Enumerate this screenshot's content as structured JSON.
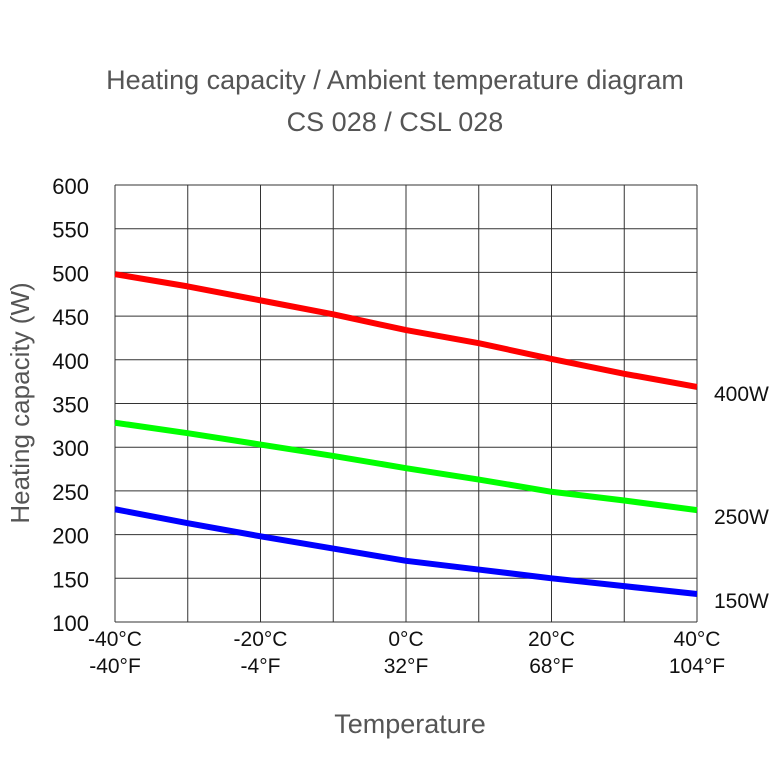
{
  "chart_data": {
    "type": "line",
    "title": "Heating capacity / Ambient temperature diagram",
    "subtitle": "CS 028 / CSL 028",
    "xlabel": "Temperature",
    "ylabel": "Heating capacity (W)",
    "x": [
      -40,
      -30,
      -20,
      -10,
      0,
      10,
      20,
      30,
      40
    ],
    "xlim": [
      -40,
      40
    ],
    "ylim": [
      100,
      600
    ],
    "yticks": [
      100,
      150,
      200,
      250,
      300,
      350,
      400,
      450,
      500,
      550,
      600
    ],
    "xticks": [
      {
        "value": -40,
        "c": "-40°C",
        "f": "-40°F"
      },
      {
        "value": -20,
        "c": "-20°C",
        "f": "-4°F"
      },
      {
        "value": 0,
        "c": "0°C",
        "f": "32°F"
      },
      {
        "value": 20,
        "c": "20°C",
        "f": "68°F"
      },
      {
        "value": 40,
        "c": "40°C",
        "f": "104°F"
      }
    ],
    "grid": true,
    "series": [
      {
        "name": "400W",
        "color": "#ff0000",
        "values": [
          498,
          484,
          468,
          452,
          434,
          419,
          401,
          384,
          369
        ]
      },
      {
        "name": "250W",
        "color": "#00ff00",
        "values": [
          328,
          316,
          303,
          290,
          276,
          263,
          249,
          239,
          228
        ]
      },
      {
        "name": "150W",
        "color": "#0000ff",
        "values": [
          229,
          213,
          198,
          184,
          170,
          160,
          150,
          141,
          132
        ]
      }
    ]
  }
}
